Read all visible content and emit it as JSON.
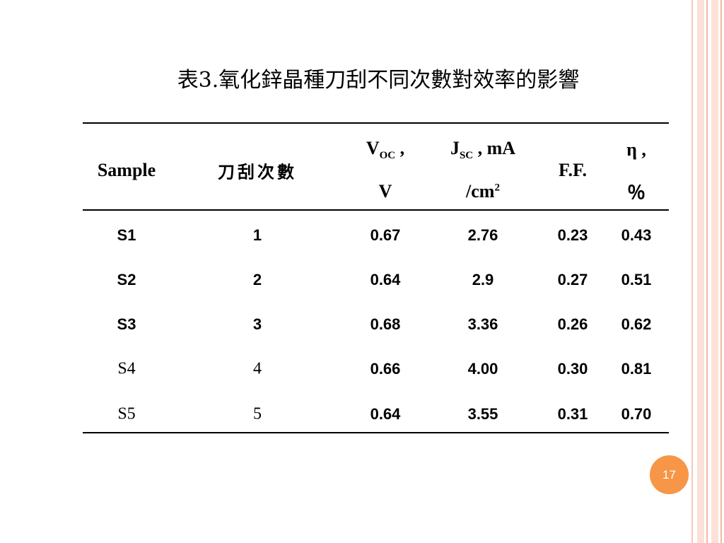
{
  "title": "表3.氧化鋅晶種刀刮不同次數對效率的影響",
  "table": {
    "header": [
      {
        "line1": "Sample"
      },
      {
        "line1": "刀刮次數"
      },
      {
        "main": "V",
        "sub": "OC",
        "rest": " ,",
        "line2": "V"
      },
      {
        "main": "J",
        "sub": "SC",
        "rest": " , mA",
        "line2": "/cm",
        "sup": "2"
      },
      {
        "line1": "F.F."
      },
      {
        "main": "η ,",
        "line2": "％"
      }
    ],
    "rows": [
      [
        "S1",
        "1",
        "0.67",
        "2.76",
        "0.23",
        "0.43"
      ],
      [
        "S2",
        "2",
        "0.64",
        "2.9",
        "0.27",
        "0.51"
      ],
      [
        "S3",
        "3",
        "0.68",
        "3.36",
        "0.26",
        "0.62"
      ],
      [
        "S4",
        "4",
        "0.66",
        "4.00",
        "0.30",
        "0.81"
      ],
      [
        "S5",
        "5",
        "0.64",
        "3.55",
        "0.31",
        "0.70"
      ]
    ]
  },
  "page_number": "17"
}
